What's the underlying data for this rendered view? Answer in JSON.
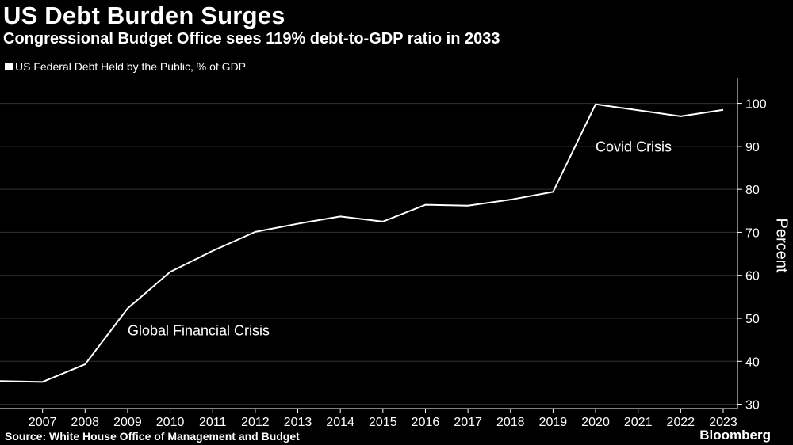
{
  "header": {
    "title": "US Debt Burden Surges",
    "subtitle": "Congressional Budget Office sees 119% debt-to-GDP ratio in 2033"
  },
  "footer": {
    "source": "Source: White House Office of Management and Budget",
    "brand": "Bloomberg"
  },
  "colors": {
    "background": "#000000",
    "line": "#ffffff",
    "grid": "#333333"
  },
  "chart_data": {
    "type": "line",
    "title": "US Debt Burden Surges",
    "subtitle": "Congressional Budget Office sees 119% debt-to-GDP ratio in 2033",
    "ylabel": "Percent",
    "xlabel": "",
    "xlim": [
      2006,
      2023
    ],
    "ylim": [
      29,
      106
    ],
    "y_ticks": [
      30,
      40,
      50,
      60,
      70,
      80,
      90,
      100
    ],
    "x_ticks": [
      2007,
      2008,
      2009,
      2010,
      2011,
      2012,
      2013,
      2014,
      2015,
      2016,
      2017,
      2018,
      2019,
      2020,
      2021,
      2022,
      2023
    ],
    "grid": "horizontal",
    "legend_position": "top-left",
    "series": [
      {
        "name": "US Federal Debt Held by the Public, % of GDP",
        "x": [
          2006,
          2007,
          2008,
          2009,
          2010,
          2011,
          2012,
          2013,
          2014,
          2015,
          2016,
          2017,
          2018,
          2019,
          2020,
          2021,
          2022,
          2023
        ],
        "values": [
          35.4,
          35.2,
          39.3,
          52.3,
          60.8,
          65.7,
          70.1,
          72.0,
          73.7,
          72.5,
          76.4,
          76.2,
          77.6,
          79.4,
          99.8,
          98.4,
          97.0,
          98.5
        ]
      }
    ],
    "annotations": [
      {
        "text": "Global Financial Crisis",
        "x": 2009,
        "y": 46
      },
      {
        "text": "Covid Crisis",
        "x": 2020,
        "y": 88.8
      }
    ]
  }
}
